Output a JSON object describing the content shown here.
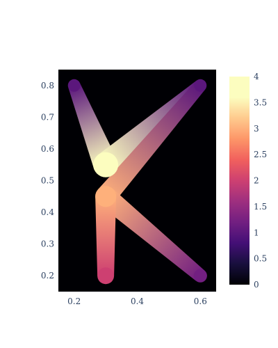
{
  "chart_data": {
    "type": "line",
    "title": "",
    "xlabel": "",
    "ylabel": "",
    "xlim": [
      0.15,
      0.65
    ],
    "ylim": [
      0.15,
      0.85
    ],
    "x_ticks": [
      0.2,
      0.4,
      0.6
    ],
    "x_tick_labels": [
      "0.2",
      "0.4",
      "0.6"
    ],
    "y_ticks": [
      0.2,
      0.3,
      0.4,
      0.5,
      0.6,
      0.7,
      0.8
    ],
    "y_tick_labels": [
      "0.2",
      "0.3",
      "0.4",
      "0.5",
      "0.6",
      "0.7",
      "0.8"
    ],
    "plot_background": "#000004",
    "series": [
      {
        "points": [
          {
            "x": 0.2,
            "y": 0.8,
            "value": 1
          },
          {
            "x": 0.3,
            "y": 0.55,
            "value": 4
          },
          {
            "x": 0.6,
            "y": 0.8,
            "value": 1
          },
          {
            "x": 0.3,
            "y": 0.45,
            "value": 3
          },
          {
            "x": 0.6,
            "y": 0.2,
            "value": 1.2
          },
          {
            "x": 0.3,
            "y": 0.45,
            "value": 3
          },
          {
            "x": 0.3,
            "y": 0.2,
            "value": 2
          }
        ]
      }
    ],
    "colorbar": {
      "colorscale": "magma",
      "range": [
        0,
        4
      ],
      "ticks": [
        0,
        0.5,
        1,
        1.5,
        2,
        2.5,
        3,
        3.5,
        4
      ],
      "tick_labels": [
        "0",
        "0.5",
        "1",
        "1.5",
        "2",
        "2.5",
        "3",
        "3.5",
        "4"
      ]
    },
    "grid": false
  }
}
